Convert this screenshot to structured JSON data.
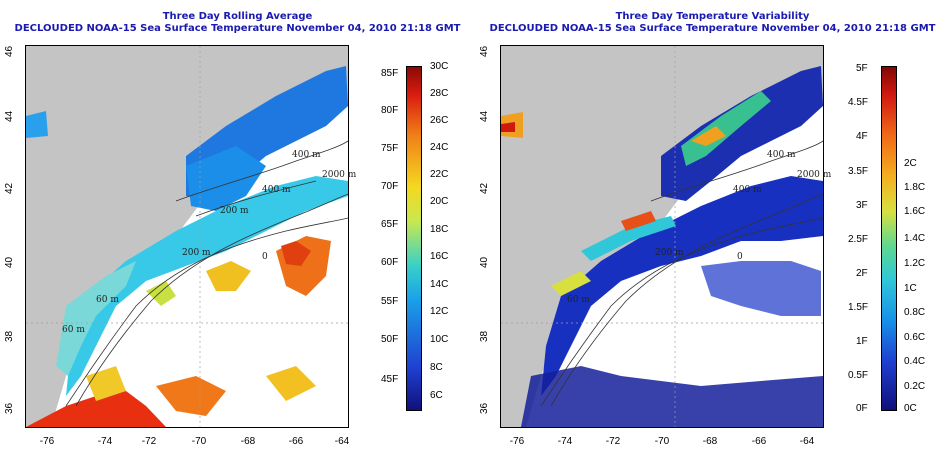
{
  "panels": [
    {
      "title": "Three Day Rolling Average",
      "subtitle": "DECLOUDED NOAA-15 Sea Surface Temperature November 04, 2010 21:18 GMT",
      "colorbar_F": [
        "85F",
        "80F",
        "75F",
        "70F",
        "65F",
        "60F",
        "55F",
        "50F",
        "45F"
      ],
      "colorbar_C": [
        "30C",
        "28C",
        "26C",
        "24C",
        "22C",
        "20C",
        "18C",
        "16C",
        "14C",
        "12C",
        "10C",
        "8C",
        "6C"
      ]
    },
    {
      "title": "Three Day Temperature Variability",
      "subtitle": "DECLOUDED NOAA-15 Sea Surface Temperature November 04, 2010 21:18 GMT",
      "colorbar_F": [
        "5F",
        "4.5F",
        "4F",
        "3.5F",
        "3F",
        "2.5F",
        "2F",
        "1.5F",
        "1F",
        "0.5F",
        "0F"
      ],
      "colorbar_C": [
        "2C",
        "1.8C",
        "1.6C",
        "1.4C",
        "1.2C",
        "1C",
        "0.8C",
        "0.6C",
        "0.4C",
        "0.2C",
        "0C"
      ]
    }
  ],
  "axes": {
    "lon_ticks": [
      "-76",
      "-74",
      "-72",
      "-70",
      "-68",
      "-66",
      "-64"
    ],
    "lat_ticks": [
      "46",
      "44",
      "42",
      "40",
      "38",
      "36"
    ]
  },
  "contour_labels": {
    "left": [
      "400 m",
      "2000 m",
      "400 m",
      "200 m",
      "200 m",
      "60 m",
      "60 m",
      "0"
    ],
    "right": [
      "400 m",
      "2000 m",
      "400 m",
      "200 m",
      "60 m",
      "0"
    ]
  },
  "colors": {
    "land": "#c4c4c4",
    "title": "#1a1ab0",
    "grid": "#a0a0a0"
  }
}
